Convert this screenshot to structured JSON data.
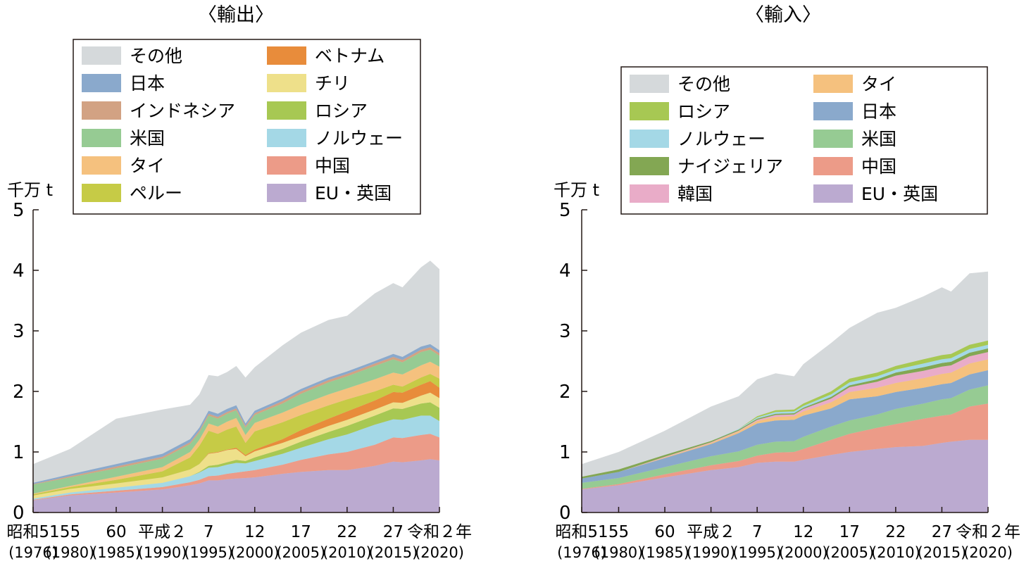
{
  "chart_data": [
    {
      "type": "area",
      "stacked": true,
      "title": "〈輸出〉",
      "ylabel": "千万 t",
      "ylim": [
        0,
        5
      ],
      "yticks": [
        "0",
        "1",
        "2",
        "3",
        "4",
        "5"
      ],
      "xlim": [
        1976,
        2020
      ],
      "xticks": [
        {
          "year": 1976,
          "label": "昭和51",
          "sub": "(1976)"
        },
        {
          "year": 1980,
          "label": "55",
          "sub": "(1980)"
        },
        {
          "year": 1985,
          "label": "60",
          "sub": "(1985)"
        },
        {
          "year": 1990,
          "label": "平成２",
          "sub": "(1990)"
        },
        {
          "year": 1995,
          "label": "7",
          "sub": "(1995)"
        },
        {
          "year": 2000,
          "label": "12",
          "sub": "(2000)"
        },
        {
          "year": 2005,
          "label": "17",
          "sub": "(2005)"
        },
        {
          "year": 2010,
          "label": "22",
          "sub": "(2010)"
        },
        {
          "year": 2015,
          "label": "27",
          "sub": "(2015)"
        },
        {
          "year": 2020,
          "label": "令和２年",
          "sub": "(2020)"
        }
      ],
      "legend": [
        {
          "name": "その他",
          "color": "#d5d9db"
        },
        {
          "name": "日本",
          "color": "#8aa9cc"
        },
        {
          "name": "インドネシア",
          "color": "#d2a283"
        },
        {
          "name": "米国",
          "color": "#96cb93"
        },
        {
          "name": "タイ",
          "color": "#f5c17e"
        },
        {
          "name": "ペルー",
          "color": "#c6cb46"
        },
        {
          "name": "ベトナム",
          "color": "#e88c3b"
        },
        {
          "name": "チリ",
          "color": "#eee08a"
        },
        {
          "name": "ロシア",
          "color": "#a7c853"
        },
        {
          "name": "ノルウェー",
          "color": "#a4d8e6"
        },
        {
          "name": "中国",
          "color": "#ec9b88"
        },
        {
          "name": "EU・英国",
          "color": "#bbaad0"
        }
      ],
      "x": [
        1976,
        1980,
        1985,
        1990,
        1993,
        1994,
        1995,
        1996,
        1997,
        1998,
        1999,
        2000,
        2003,
        2005,
        2008,
        2010,
        2013,
        2015,
        2016,
        2018,
        2019,
        2020
      ],
      "total": [
        0.8,
        1.05,
        1.55,
        1.7,
        1.78,
        1.95,
        2.27,
        2.25,
        2.32,
        2.42,
        2.23,
        2.4,
        2.76,
        2.97,
        3.18,
        3.25,
        3.62,
        3.79,
        3.72,
        4.05,
        4.16,
        4.02
      ],
      "series": [
        {
          "name": "EU・英国",
          "values": [
            0.2,
            0.28,
            0.33,
            0.38,
            0.45,
            0.48,
            0.53,
            0.53,
            0.55,
            0.56,
            0.57,
            0.58,
            0.64,
            0.67,
            0.7,
            0.7,
            0.77,
            0.84,
            0.83,
            0.86,
            0.88,
            0.86
          ]
        },
        {
          "name": "中国",
          "values": [
            0.01,
            0.02,
            0.03,
            0.04,
            0.05,
            0.06,
            0.07,
            0.08,
            0.09,
            0.1,
            0.11,
            0.12,
            0.15,
            0.2,
            0.26,
            0.3,
            0.35,
            0.4,
            0.4,
            0.42,
            0.42,
            0.38
          ]
        },
        {
          "name": "ノルウェー",
          "values": [
            0.02,
            0.03,
            0.05,
            0.07,
            0.1,
            0.12,
            0.14,
            0.14,
            0.15,
            0.16,
            0.13,
            0.15,
            0.18,
            0.2,
            0.25,
            0.29,
            0.33,
            0.3,
            0.3,
            0.32,
            0.3,
            0.27
          ]
        },
        {
          "name": "ロシア",
          "values": [
            0,
            0,
            0,
            0,
            0,
            0.01,
            0.03,
            0.04,
            0.04,
            0.05,
            0.04,
            0.06,
            0.08,
            0.1,
            0.12,
            0.14,
            0.15,
            0.18,
            0.18,
            0.2,
            0.22,
            0.22
          ]
        },
        {
          "name": "チリ",
          "values": [
            0.05,
            0.06,
            0.07,
            0.09,
            0.11,
            0.13,
            0.2,
            0.2,
            0.2,
            0.18,
            0.08,
            0.1,
            0.1,
            0.09,
            0.1,
            0.1,
            0.1,
            0.1,
            0.1,
            0.13,
            0.16,
            0.16
          ]
        },
        {
          "name": "ベトナム",
          "values": [
            0,
            0,
            0,
            0,
            0,
            0,
            0.01,
            0.01,
            0.01,
            0.02,
            0.02,
            0.03,
            0.06,
            0.1,
            0.12,
            0.14,
            0.15,
            0.17,
            0.17,
            0.18,
            0.19,
            0.17
          ]
        },
        {
          "name": "ペルー",
          "values": [
            0.02,
            0.03,
            0.06,
            0.1,
            0.2,
            0.3,
            0.37,
            0.3,
            0.33,
            0.35,
            0.2,
            0.3,
            0.28,
            0.25,
            0.22,
            0.2,
            0.15,
            0.12,
            0.1,
            0.12,
            0.12,
            0.15
          ]
        },
        {
          "name": "タイ",
          "values": [
            0.01,
            0.02,
            0.05,
            0.07,
            0.09,
            0.1,
            0.12,
            0.12,
            0.13,
            0.14,
            0.13,
            0.14,
            0.16,
            0.17,
            0.18,
            0.18,
            0.2,
            0.2,
            0.2,
            0.2,
            0.2,
            0.2
          ]
        },
        {
          "name": "米国",
          "values": [
            0.15,
            0.14,
            0.14,
            0.14,
            0.13,
            0.12,
            0.13,
            0.13,
            0.13,
            0.13,
            0.12,
            0.13,
            0.15,
            0.18,
            0.2,
            0.2,
            0.22,
            0.22,
            0.2,
            0.22,
            0.2,
            0.18
          ]
        },
        {
          "name": "インドネシア",
          "values": [
            0.01,
            0.02,
            0.03,
            0.03,
            0.03,
            0.03,
            0.03,
            0.03,
            0.03,
            0.03,
            0.03,
            0.03,
            0.04,
            0.04,
            0.04,
            0.04,
            0.04,
            0.04,
            0.04,
            0.04,
            0.04,
            0.04
          ]
        },
        {
          "name": "日本",
          "values": [
            0.02,
            0.03,
            0.04,
            0.05,
            0.05,
            0.05,
            0.05,
            0.05,
            0.05,
            0.05,
            0.04,
            0.04,
            0.04,
            0.04,
            0.04,
            0.04,
            0.04,
            0.05,
            0.05,
            0.05,
            0.05,
            0.05
          ]
        }
      ]
    },
    {
      "type": "area",
      "stacked": true,
      "title": "〈輸入〉",
      "ylabel": "千万 t",
      "ylim": [
        0,
        5
      ],
      "yticks": [
        "0",
        "1",
        "2",
        "3",
        "4",
        "5"
      ],
      "xlim": [
        1976,
        2020
      ],
      "xticks": [
        {
          "year": 1976,
          "label": "昭和51",
          "sub": "(1976)"
        },
        {
          "year": 1980,
          "label": "55",
          "sub": "(1980)"
        },
        {
          "year": 1985,
          "label": "60",
          "sub": "(1985)"
        },
        {
          "year": 1990,
          "label": "平成２",
          "sub": "(1990)"
        },
        {
          "year": 1995,
          "label": "7",
          "sub": "(1995)"
        },
        {
          "year": 2000,
          "label": "12",
          "sub": "(2000)"
        },
        {
          "year": 2005,
          "label": "17",
          "sub": "(2005)"
        },
        {
          "year": 2010,
          "label": "22",
          "sub": "(2010)"
        },
        {
          "year": 2015,
          "label": "27",
          "sub": "(2015)"
        },
        {
          "year": 2020,
          "label": "令和２年",
          "sub": "(2020)"
        }
      ],
      "legend": [
        {
          "name": "その他",
          "color": "#d5d9db"
        },
        {
          "name": "ロシア",
          "color": "#a7c853"
        },
        {
          "name": "ノルウェー",
          "color": "#a4d8e6"
        },
        {
          "name": "ナイジェリア",
          "color": "#83a753"
        },
        {
          "name": "韓国",
          "color": "#e9acc8"
        },
        {
          "name": "タイ",
          "color": "#f5c17e"
        },
        {
          "name": "日本",
          "color": "#8aa9cc"
        },
        {
          "name": "米国",
          "color": "#96cb93"
        },
        {
          "name": "中国",
          "color": "#ec9b88"
        },
        {
          "name": "EU・英国",
          "color": "#bbaad0"
        }
      ],
      "x": [
        1976,
        1980,
        1985,
        1990,
        1993,
        1995,
        1997,
        1999,
        2000,
        2003,
        2005,
        2008,
        2010,
        2013,
        2015,
        2016,
        2018,
        2020
      ],
      "total": [
        0.8,
        1.0,
        1.35,
        1.75,
        1.92,
        2.2,
        2.3,
        2.25,
        2.45,
        2.8,
        3.05,
        3.3,
        3.38,
        3.57,
        3.72,
        3.65,
        3.95,
        3.98
      ],
      "series": [
        {
          "name": "EU・英国",
          "values": [
            0.38,
            0.45,
            0.58,
            0.7,
            0.75,
            0.82,
            0.84,
            0.84,
            0.87,
            0.95,
            1.0,
            1.05,
            1.08,
            1.1,
            1.15,
            1.17,
            1.2,
            1.2
          ]
        },
        {
          "name": "中国",
          "values": [
            0.01,
            0.02,
            0.05,
            0.08,
            0.1,
            0.12,
            0.15,
            0.16,
            0.18,
            0.25,
            0.3,
            0.35,
            0.38,
            0.45,
            0.45,
            0.45,
            0.55,
            0.6
          ]
        },
        {
          "name": "米国",
          "values": [
            0.1,
            0.1,
            0.12,
            0.15,
            0.16,
            0.18,
            0.18,
            0.18,
            0.2,
            0.22,
            0.22,
            0.22,
            0.25,
            0.25,
            0.27,
            0.27,
            0.28,
            0.3
          ]
        },
        {
          "name": "日本",
          "values": [
            0.07,
            0.1,
            0.15,
            0.2,
            0.3,
            0.35,
            0.35,
            0.35,
            0.35,
            0.3,
            0.35,
            0.3,
            0.28,
            0.26,
            0.25,
            0.25,
            0.25,
            0.25
          ]
        },
        {
          "name": "タイ",
          "values": [
            0,
            0,
            0.01,
            0.02,
            0.03,
            0.04,
            0.06,
            0.06,
            0.07,
            0.1,
            0.12,
            0.14,
            0.15,
            0.16,
            0.17,
            0.17,
            0.18,
            0.18
          ]
        },
        {
          "name": "韓国",
          "values": [
            0,
            0,
            0.01,
            0.01,
            0.01,
            0.02,
            0.03,
            0.03,
            0.04,
            0.06,
            0.08,
            0.1,
            0.12,
            0.12,
            0.12,
            0.12,
            0.12,
            0.12
          ]
        },
        {
          "name": "ナイジェリア",
          "values": [
            0.03,
            0.04,
            0.03,
            0.02,
            0.02,
            0.02,
            0.02,
            0.02,
            0.02,
            0.03,
            0.03,
            0.04,
            0.05,
            0.06,
            0.06,
            0.06,
            0.06,
            0.06
          ]
        },
        {
          "name": "ノルウェー",
          "values": [
            0,
            0,
            0,
            0,
            0.01,
            0.02,
            0.03,
            0.03,
            0.03,
            0.04,
            0.05,
            0.05,
            0.05,
            0.06,
            0.06,
            0.06,
            0.06,
            0.06
          ]
        },
        {
          "name": "ロシア",
          "values": [
            0,
            0,
            0,
            0,
            0,
            0.02,
            0.03,
            0.03,
            0.04,
            0.05,
            0.06,
            0.06,
            0.06,
            0.07,
            0.07,
            0.07,
            0.07,
            0.07
          ]
        }
      ]
    }
  ]
}
